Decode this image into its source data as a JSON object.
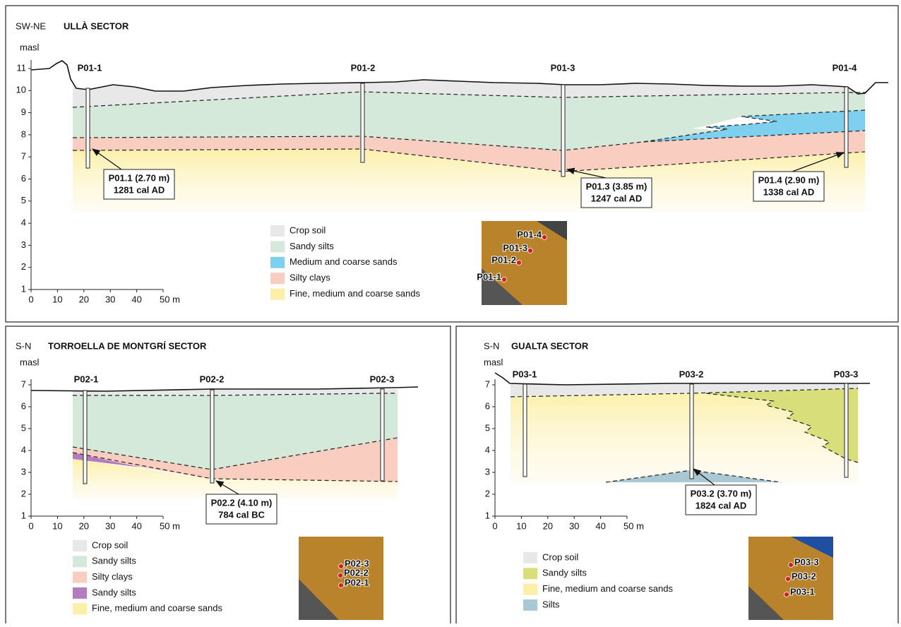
{
  "panels": [
    {
      "orientation": "SW-NE",
      "title": "ULLÀ SECTOR",
      "y_unit": "masl",
      "yticks": [
        1,
        2,
        3,
        4,
        5,
        6,
        7,
        8,
        9,
        10,
        11
      ],
      "xticks": [
        0,
        10,
        20,
        30,
        40,
        "50 m"
      ],
      "boreholes": [
        "P01-1",
        "P01-2",
        "P01-3",
        "P01-4"
      ],
      "dates": [
        {
          "sample": "P01.1 (2.70 m)",
          "age": "1281 cal AD"
        },
        {
          "sample": "P01.3 (3.85 m)",
          "age": "1247 cal AD"
        },
        {
          "sample": "P01.4 (2.90 m)",
          "age": "1338 cal AD"
        }
      ],
      "legend": [
        "Crop soil",
        "Sandy silts",
        "Medium and coarse sands",
        "Silty clays",
        "Fine, medium and coarse sands"
      ],
      "map_labels": [
        "P01-4",
        "P01-3",
        "P01-2",
        "P01-1"
      ]
    },
    {
      "orientation": "S-N",
      "title": "TORROELLA DE MONTGRÍ SECTOR",
      "y_unit": "masl",
      "yticks": [
        1,
        2,
        3,
        4,
        5,
        6,
        7
      ],
      "xticks": [
        0,
        10,
        20,
        30,
        40,
        "50 m"
      ],
      "boreholes": [
        "P02-1",
        "P02-2",
        "P02-3"
      ],
      "dates": [
        {
          "sample": "P02.2 (4.10 m)",
          "age": "784 cal BC"
        }
      ],
      "legend": [
        "Crop soil",
        "Sandy silts",
        "Silty clays",
        "Sandy silts",
        "Fine, medium and coarse sands"
      ],
      "map_labels": [
        "P02-3",
        "P02-2",
        "P02-1"
      ]
    },
    {
      "orientation": "S-N",
      "title": "GUALTA SECTOR",
      "y_unit": "masl",
      "yticks": [
        1,
        2,
        3,
        4,
        5,
        6,
        7
      ],
      "xticks": [
        0,
        10,
        20,
        30,
        40,
        "50 m"
      ],
      "boreholes": [
        "P03-1",
        "P03-2",
        "P03-3"
      ],
      "dates": [
        {
          "sample": "P03.2 (3.70 m)",
          "age": "1824 cal AD"
        }
      ],
      "legend": [
        "Crop soil",
        "Sandy silts",
        "Fine, medium and coarse sands",
        "Silts"
      ],
      "map_labels": [
        "P03-3",
        "P03-2",
        "P03-1"
      ]
    }
  ]
}
